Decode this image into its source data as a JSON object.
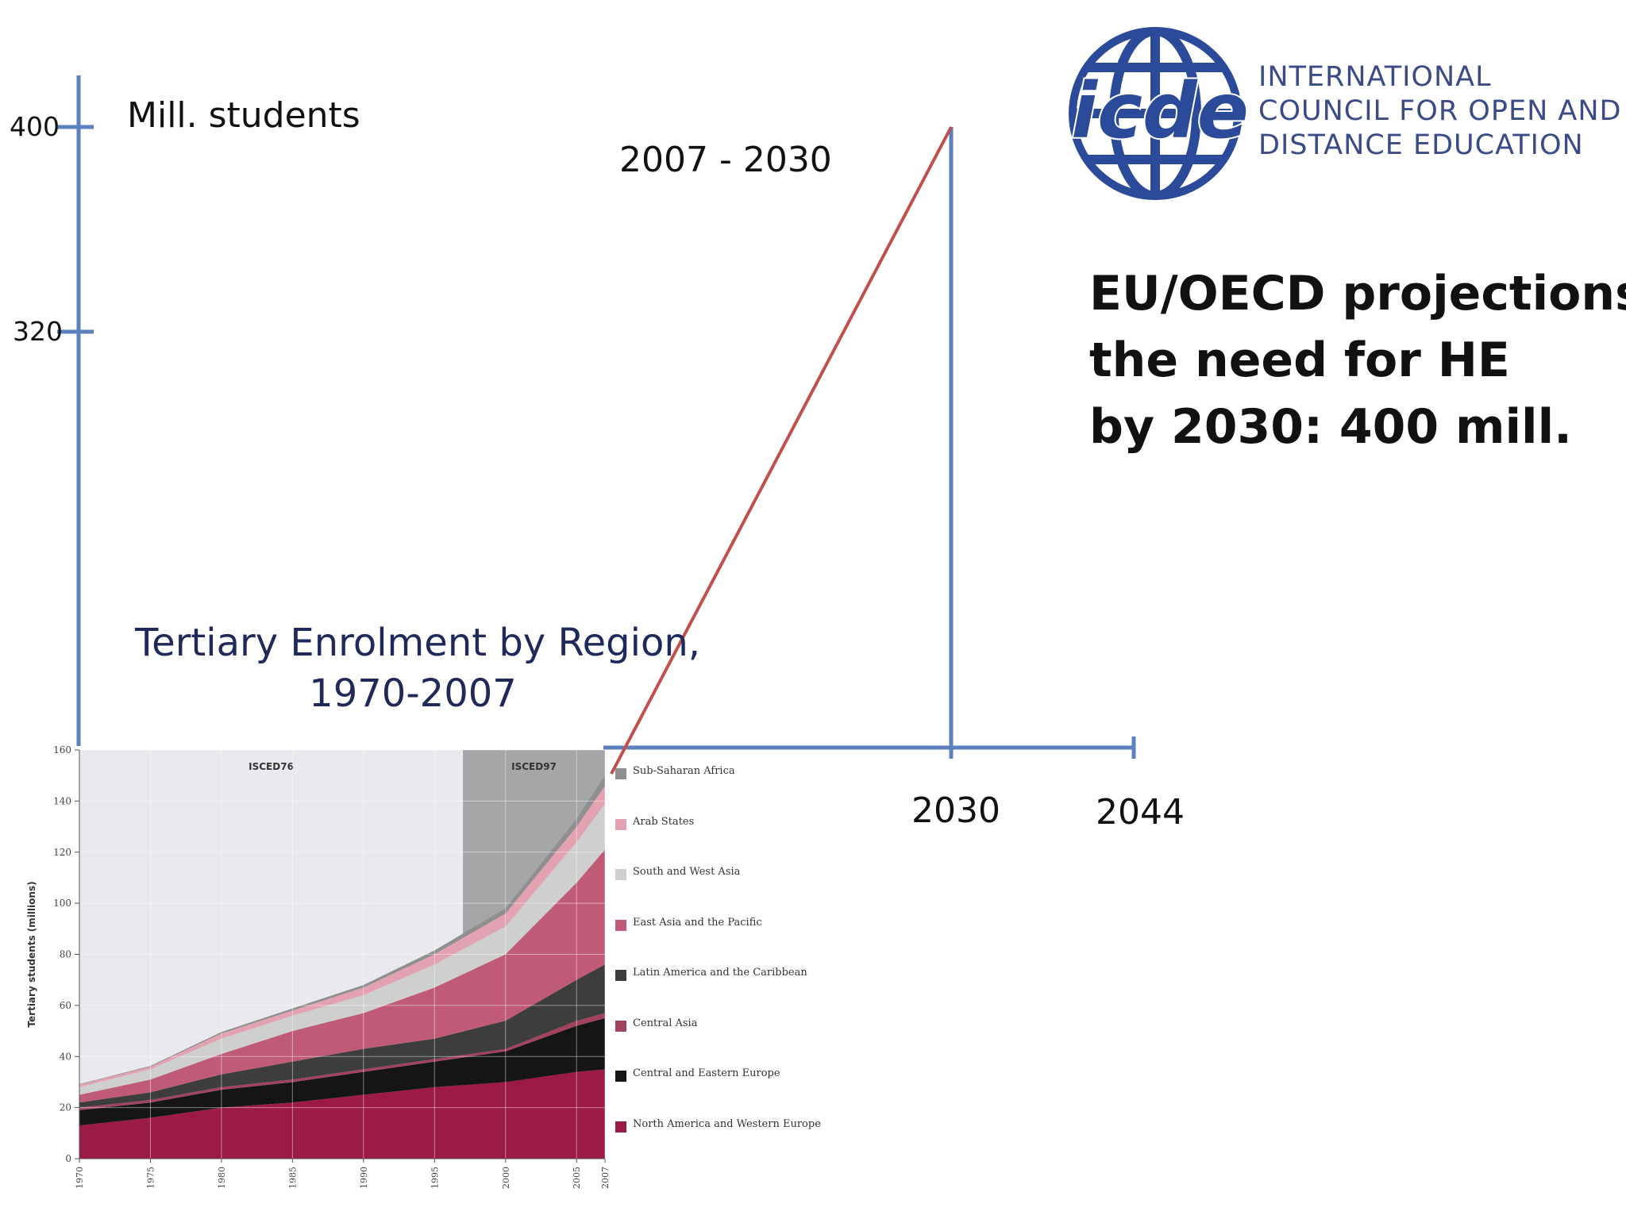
{
  "projection_axis": {
    "unit_label": "Mill. students",
    "y_ticks": [
      "400",
      "320"
    ],
    "period_label": "2007 - 2030",
    "x_ticks": [
      "2030",
      "2044"
    ]
  },
  "projection_text": [
    "EU/OECD projections",
    "the need for HE",
    "by 2030: 400 mill."
  ],
  "logo": {
    "mark_text": "icde",
    "lines": [
      "INTERNATIONAL",
      "COUNCIL FOR OPEN AND",
      "DISTANCE EDUCATION"
    ]
  },
  "colors": {
    "axis_blue": "#5b82be",
    "projection_red": "#c0504d",
    "logo_blue": "#2b4a9a"
  },
  "chart_data": [
    {
      "type": "area",
      "stacked": true,
      "title": "Tertiary Enrolment by Region, 1970-2007",
      "title_lines": [
        "Tertiary Enrolment by Region,",
        "1970-2007"
      ],
      "ylabel": "Tertiary students (millions)",
      "xlabel": "",
      "ylim": [
        0,
        160
      ],
      "y_ticks": [
        0,
        20,
        40,
        60,
        80,
        100,
        120,
        140,
        160
      ],
      "x_ticks": [
        1970,
        1975,
        1980,
        1985,
        1990,
        1995,
        2000,
        2005,
        2007
      ],
      "grid": true,
      "legend_position": "right",
      "regions": [
        {
          "label": "ISCED76",
          "from": 1970,
          "to": 1997
        },
        {
          "label": "ISCED97",
          "from": 1997,
          "to": 2007
        }
      ],
      "x": [
        1970,
        1975,
        1980,
        1985,
        1990,
        1995,
        2000,
        2005,
        2007
      ],
      "series": [
        {
          "name": "North America and Western Europe",
          "color": "#9b1a47",
          "values": [
            13,
            16,
            20,
            22,
            25,
            28,
            30,
            34,
            35
          ]
        },
        {
          "name": "Central and Eastern Europe",
          "color": "#151515",
          "values": [
            6,
            6,
            7,
            8,
            9,
            10,
            12,
            18,
            20
          ]
        },
        {
          "name": "Central Asia",
          "color": "#a2435e",
          "values": [
            1,
            1,
            1,
            1,
            1,
            1,
            1,
            2,
            2
          ]
        },
        {
          "name": "Latin America and the Caribbean",
          "color": "#3d3d3d",
          "values": [
            2,
            3,
            5,
            7,
            8,
            8,
            11,
            16,
            19
          ]
        },
        {
          "name": "East Asia and the Pacific",
          "color": "#bf5b76",
          "values": [
            3,
            5,
            8,
            12,
            14,
            20,
            26,
            38,
            45
          ]
        },
        {
          "name": "South and West Asia",
          "color": "#cfcfcf",
          "values": [
            3,
            4,
            6,
            6,
            7,
            9,
            11,
            16,
            18
          ]
        },
        {
          "name": "Arab States",
          "color": "#e2a2b1",
          "values": [
            1,
            1,
            2,
            2,
            3,
            4,
            5,
            6,
            7
          ]
        },
        {
          "name": "Sub-Saharan Africa",
          "color": "#8f8f8f",
          "values": [
            0.2,
            0.3,
            0.6,
            0.8,
            1,
            1.5,
            2,
            3,
            4
          ]
        }
      ]
    },
    {
      "type": "line",
      "title": "",
      "ylabel": "Mill. students",
      "x_tick_labels": [
        "2030",
        "2044"
      ],
      "y_tick_labels": [
        400,
        320
      ],
      "series": [
        {
          "values": [
            {
              "x": 2007,
              "y": 150
            },
            {
              "x": 2030,
              "y": 400
            }
          ]
        }
      ]
    }
  ]
}
